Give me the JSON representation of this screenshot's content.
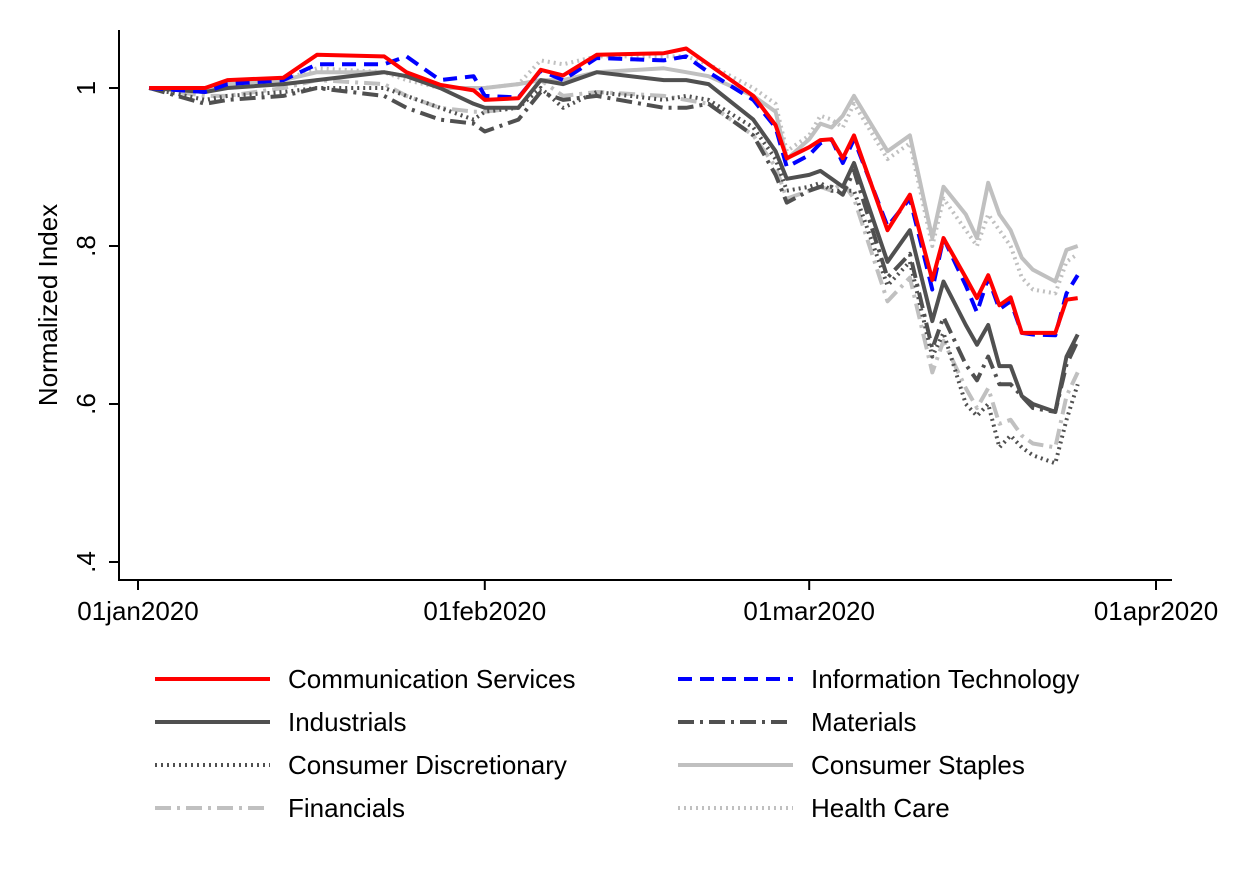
{
  "chart_data": {
    "type": "line",
    "title": "",
    "xlabel": "",
    "ylabel": "Normalized Index",
    "ylim": [
      0.4,
      1.0
    ],
    "yticks": [
      {
        "v": 0.4,
        "label": ".4"
      },
      {
        "v": 0.6,
        "label": ".6"
      },
      {
        "v": 0.8,
        "label": ".8"
      },
      {
        "v": 1.0,
        "label": "1"
      }
    ],
    "xticks": [
      {
        "day": 0,
        "label": "01jan2020"
      },
      {
        "day": 31,
        "label": "01feb2020"
      },
      {
        "day": 60,
        "label": "01mar2020"
      },
      {
        "day": 91,
        "label": "01apr2020"
      }
    ],
    "x_unit": "days since 01jan2020",
    "x": [
      1,
      6,
      8,
      13,
      16,
      22,
      24,
      27,
      30,
      31,
      34,
      36,
      38,
      41,
      47,
      49,
      51,
      55,
      57,
      58,
      60,
      61,
      62,
      63,
      64,
      67,
      69,
      71,
      72,
      74,
      75,
      76,
      77,
      78,
      79,
      80,
      82,
      83,
      84
    ],
    "legend_position": "bottom",
    "series": [
      {
        "name": "Communication Services",
        "color": "#ff0000",
        "style": "solid",
        "values": [
          1,
          1,
          1.01,
          1.013,
          1.042,
          1.04,
          1.02,
          1.004,
          0.997,
          0.985,
          0.987,
          1.023,
          1.016,
          1.042,
          1.044,
          1.05,
          1.03,
          0.99,
          0.953,
          0.911,
          0.925,
          0.934,
          0.935,
          0.911,
          0.94,
          0.82,
          0.865,
          0.757,
          0.81,
          0.76,
          0.734,
          0.763,
          0.725,
          0.735,
          0.69,
          0.69,
          0.69,
          0.732,
          0.734
        ]
      },
      {
        "name": "Information Technology",
        "color": "#0000ff",
        "style": "dash",
        "values": [
          1,
          0.995,
          1.005,
          1.01,
          1.03,
          1.03,
          1.04,
          1.01,
          1.015,
          0.99,
          0.988,
          1.022,
          1.01,
          1.038,
          1.035,
          1.04,
          1.02,
          0.985,
          0.95,
          0.9,
          0.915,
          0.93,
          0.935,
          0.905,
          0.935,
          0.825,
          0.86,
          0.745,
          0.81,
          0.75,
          0.716,
          0.76,
          0.72,
          0.73,
          0.69,
          0.688,
          0.687,
          0.74,
          0.763
        ]
      },
      {
        "name": "Industrials",
        "color": "#505050",
        "style": "solid",
        "values": [
          1,
          0.995,
          1.0,
          1.005,
          1.01,
          1.02,
          1.015,
          1.0,
          0.98,
          0.975,
          0.975,
          1.01,
          1.005,
          1.02,
          1.01,
          1.01,
          1.005,
          0.96,
          0.92,
          0.885,
          0.89,
          0.895,
          0.885,
          0.875,
          0.905,
          0.78,
          0.82,
          0.705,
          0.755,
          0.7,
          0.675,
          0.7,
          0.648,
          0.648,
          0.61,
          0.6,
          0.59,
          0.66,
          0.688
        ]
      },
      {
        "name": "Materials",
        "color": "#505050",
        "style": "dashdot",
        "values": [
          1,
          0.98,
          0.985,
          0.99,
          1.0,
          0.99,
          0.975,
          0.96,
          0.955,
          0.945,
          0.96,
          0.995,
          0.985,
          0.99,
          0.975,
          0.975,
          0.98,
          0.94,
          0.89,
          0.855,
          0.87,
          0.875,
          0.875,
          0.865,
          0.895,
          0.76,
          0.79,
          0.67,
          0.71,
          0.65,
          0.63,
          0.66,
          0.625,
          0.625,
          0.61,
          0.595,
          0.59,
          0.65,
          0.68
        ]
      },
      {
        "name": "Consumer Discretionary",
        "color": "#505050",
        "style": "dot",
        "values": [
          1,
          0.985,
          0.99,
          0.995,
          1.0,
          1.0,
          0.99,
          0.975,
          0.96,
          0.97,
          0.975,
          1.0,
          0.975,
          0.995,
          0.985,
          0.99,
          0.985,
          0.95,
          0.91,
          0.87,
          0.875,
          0.88,
          0.87,
          0.87,
          0.87,
          0.75,
          0.78,
          0.66,
          0.69,
          0.6,
          0.585,
          0.6,
          0.545,
          0.56,
          0.545,
          0.535,
          0.525,
          0.58,
          0.625
        ]
      },
      {
        "name": "Consumer Staples",
        "color": "#c0c0c0",
        "style": "solid",
        "values": [
          1,
          1,
          1.005,
          1.01,
          1.02,
          1.02,
          1.015,
          1.0,
          1.0,
          1.0,
          1.005,
          1.01,
          1.01,
          1.02,
          1.025,
          1.02,
          1.015,
          0.99,
          0.97,
          0.91,
          0.935,
          0.955,
          0.95,
          0.965,
          0.99,
          0.92,
          0.94,
          0.81,
          0.875,
          0.84,
          0.81,
          0.88,
          0.84,
          0.82,
          0.785,
          0.77,
          0.755,
          0.795,
          0.8
        ]
      },
      {
        "name": "Financials",
        "color": "#c0c0c0",
        "style": "dashdot",
        "values": [
          1,
          0.99,
          0.99,
          1.0,
          1.01,
          1.005,
          0.99,
          0.975,
          0.97,
          0.97,
          0.975,
          1.01,
          0.99,
          0.995,
          0.99,
          0.985,
          0.98,
          0.94,
          0.9,
          0.86,
          0.87,
          0.875,
          0.87,
          0.88,
          0.86,
          0.73,
          0.76,
          0.64,
          0.68,
          0.62,
          0.595,
          0.62,
          0.575,
          0.58,
          0.56,
          0.55,
          0.545,
          0.61,
          0.64
        ]
      },
      {
        "name": "Health Care",
        "color": "#c0c0c0",
        "style": "dot",
        "values": [
          1,
          1.0,
          1.005,
          1.01,
          1.025,
          1.02,
          1.01,
          1.0,
          1.0,
          1.0,
          1.005,
          1.035,
          1.03,
          1.04,
          1.04,
          1.04,
          1.03,
          1.0,
          0.98,
          0.92,
          0.94,
          0.965,
          0.96,
          0.95,
          0.98,
          0.91,
          0.93,
          0.8,
          0.86,
          0.82,
          0.8,
          0.84,
          0.82,
          0.8,
          0.76,
          0.745,
          0.74,
          0.78,
          0.79
        ]
      }
    ]
  }
}
